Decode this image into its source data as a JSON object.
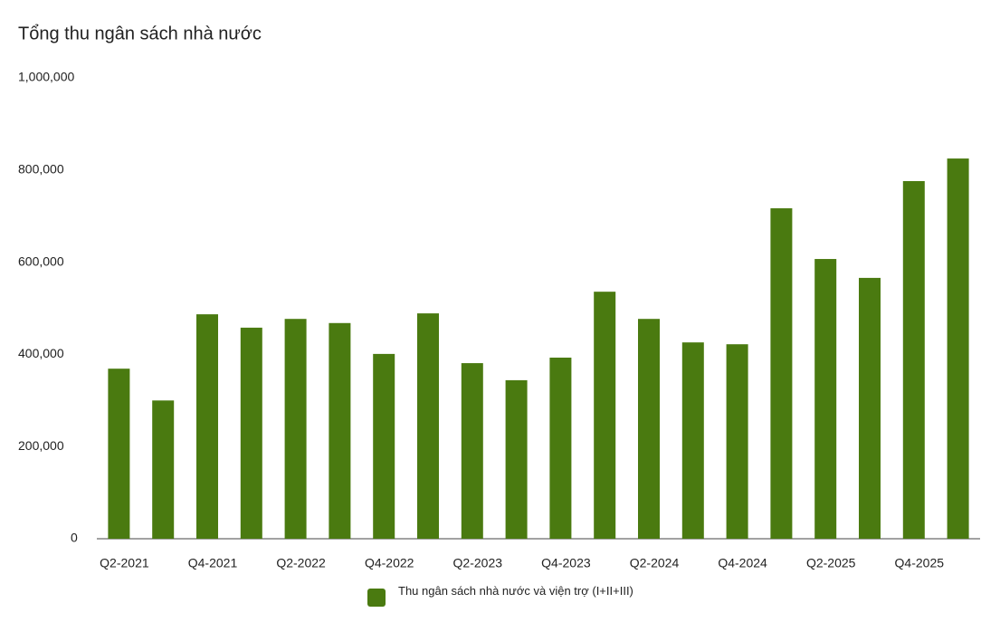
{
  "chart_data": {
    "type": "bar",
    "title": "Tổng thu ngân sách nhà nước",
    "categories": [
      "Q2-2021",
      null,
      "Q4-2021",
      null,
      "Q2-2022",
      null,
      "Q4-2022",
      null,
      "Q2-2023",
      null,
      "Q4-2023",
      null,
      "Q2-2024",
      null,
      "Q4-2024",
      null,
      "Q2-2025",
      null,
      "Q4-2025",
      null
    ],
    "series": [
      {
        "name": "Thu ngân sách nhà nước và viện trợ (I+II+III)",
        "color": "#4a7a10",
        "values": [
          369000,
          300000,
          487000,
          458000,
          477000,
          468000,
          401000,
          489000,
          381000,
          344000,
          393000,
          536000,
          477000,
          426000,
          422000,
          717000,
          607000,
          566000,
          776000,
          825000
        ]
      }
    ],
    "ylim": [
      0,
      1000000
    ],
    "yticks": [
      0,
      {
        "value": 200000,
        "label": "200,000"
      },
      {
        "value": 400000,
        "label": "400,000"
      },
      {
        "value": 600000,
        "label": "600,000"
      },
      {
        "value": 800000,
        "label": "800,000"
      },
      {
        "value": 1000000,
        "label": "1,000,000"
      }
    ],
    "grid": false,
    "legend": "bottom"
  }
}
